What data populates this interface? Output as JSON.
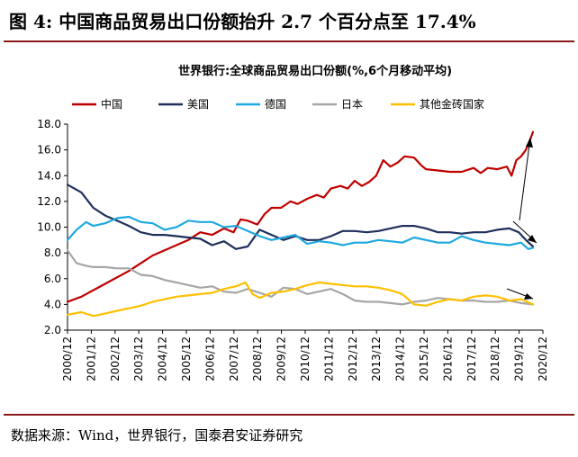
{
  "figure": {
    "title": "图 4: 中国商品贸易出口份额抬升 2.7 个百分点至 17.4%",
    "source": "数据来源：Wind，世界银行，国泰君安证券研究"
  },
  "chart_data": {
    "type": "line",
    "title": "世界银行:全球商品贸易出口份额(%,6个月移动平均)",
    "xlabel": "",
    "ylabel": "",
    "ylim": [
      2.0,
      18.0
    ],
    "yticks": [
      "2.0",
      "4.0",
      "6.0",
      "8.0",
      "10.0",
      "12.0",
      "14.0",
      "16.0",
      "18.0"
    ],
    "x_tick_labels": [
      "2000/12",
      "2001/12",
      "2002/12",
      "2003/12",
      "2004/12",
      "2005/12",
      "2006/12",
      "2007/12",
      "2008/12",
      "2009/12",
      "2010/12",
      "2011/12",
      "2012/12",
      "2013/12",
      "2014/12",
      "2015/12",
      "2016/12",
      "2017/12",
      "2018/12",
      "2019/12",
      "2020/12"
    ],
    "x_range": [
      2000.917,
      2020.917
    ],
    "grid": false,
    "legend_position": "top",
    "series": [
      {
        "name": "中国",
        "color": "#c00000",
        "x": [
          2000.917,
          2001.5,
          2002.0,
          2002.5,
          2003.0,
          2003.5,
          2004.0,
          2004.5,
          2005.0,
          2005.5,
          2006.0,
          2006.5,
          2007.0,
          2007.5,
          2007.9,
          2008.2,
          2008.5,
          2008.9,
          2009.2,
          2009.5,
          2009.9,
          2010.3,
          2010.6,
          2011.0,
          2011.4,
          2011.7,
          2012.0,
          2012.4,
          2012.7,
          2013.0,
          2013.3,
          2013.6,
          2013.9,
          2014.2,
          2014.5,
          2014.8,
          2015.1,
          2015.5,
          2015.8,
          2016.0,
          2016.5,
          2017.0,
          2017.5,
          2018.0,
          2018.3,
          2018.6,
          2019.0,
          2019.4,
          2019.6,
          2019.8,
          2020.0,
          2020.2,
          2020.4,
          2020.5
        ],
        "values": [
          4.2,
          4.6,
          5.1,
          5.6,
          6.1,
          6.6,
          7.2,
          7.8,
          8.2,
          8.6,
          9.0,
          9.6,
          9.4,
          9.9,
          9.6,
          10.6,
          10.5,
          10.2,
          11.0,
          11.5,
          11.5,
          12.0,
          11.8,
          12.2,
          12.5,
          12.3,
          13.0,
          13.2,
          13.0,
          13.6,
          13.2,
          13.5,
          14.0,
          15.2,
          14.7,
          15.0,
          15.5,
          15.4,
          14.8,
          14.5,
          14.4,
          14.3,
          14.3,
          14.6,
          14.2,
          14.6,
          14.5,
          14.7,
          14.0,
          15.2,
          15.5,
          16.0,
          16.9,
          17.4
        ]
      },
      {
        "name": "美国",
        "color": "#1f2f5c",
        "x": [
          2000.917,
          2001.5,
          2002.0,
          2002.5,
          2003.0,
          2003.5,
          2004.0,
          2004.5,
          2005.0,
          2005.5,
          2006.0,
          2006.5,
          2007.0,
          2007.5,
          2008.0,
          2008.5,
          2009.0,
          2009.5,
          2010.0,
          2010.5,
          2011.0,
          2011.5,
          2012.0,
          2012.5,
          2013.0,
          2013.5,
          2014.0,
          2014.5,
          2015.0,
          2015.5,
          2016.0,
          2016.5,
          2017.0,
          2017.5,
          2018.0,
          2018.5,
          2019.0,
          2019.5,
          2019.9,
          2020.2,
          2020.5
        ],
        "values": [
          13.3,
          12.7,
          11.5,
          10.9,
          10.5,
          10.1,
          9.6,
          9.4,
          9.4,
          9.3,
          9.2,
          9.1,
          8.6,
          8.9,
          8.3,
          8.5,
          9.8,
          9.4,
          9.0,
          9.3,
          9.0,
          9.0,
          9.3,
          9.7,
          9.7,
          9.6,
          9.7,
          9.9,
          10.1,
          10.1,
          9.9,
          9.6,
          9.6,
          9.5,
          9.6,
          9.6,
          9.8,
          9.9,
          9.6,
          9.0,
          8.5
        ]
      },
      {
        "name": "德国",
        "color": "#1fa8e0",
        "x": [
          2000.917,
          2001.3,
          2001.7,
          2002.0,
          2002.5,
          2003.0,
          2003.5,
          2004.0,
          2004.5,
          2005.0,
          2005.5,
          2006.0,
          2006.5,
          2007.0,
          2007.5,
          2008.0,
          2008.5,
          2009.0,
          2009.5,
          2010.0,
          2010.5,
          2011.0,
          2011.5,
          2012.0,
          2012.5,
          2013.0,
          2013.5,
          2014.0,
          2014.5,
          2015.0,
          2015.5,
          2016.0,
          2016.5,
          2017.0,
          2017.5,
          2018.0,
          2018.5,
          2019.0,
          2019.5,
          2020.0,
          2020.3,
          2020.5
        ],
        "values": [
          9.0,
          9.8,
          10.4,
          10.1,
          10.3,
          10.7,
          10.8,
          10.4,
          10.3,
          9.8,
          10.0,
          10.5,
          10.4,
          10.4,
          10.0,
          10.1,
          9.7,
          9.3,
          9.0,
          9.2,
          9.4,
          8.7,
          8.9,
          8.8,
          8.6,
          8.8,
          8.8,
          9.0,
          8.9,
          8.8,
          9.2,
          9.0,
          8.8,
          8.8,
          9.3,
          9.0,
          8.8,
          8.7,
          8.6,
          8.8,
          8.3,
          8.4
        ]
      },
      {
        "name": "日本",
        "color": "#a6a6a6",
        "x": [
          2000.917,
          2001.3,
          2001.7,
          2002.0,
          2002.5,
          2003.0,
          2003.5,
          2004.0,
          2004.5,
          2005.0,
          2005.5,
          2006.0,
          2006.5,
          2007.0,
          2007.5,
          2008.0,
          2008.5,
          2009.0,
          2009.5,
          2010.0,
          2010.5,
          2011.0,
          2011.5,
          2012.0,
          2012.5,
          2013.0,
          2013.5,
          2014.0,
          2014.5,
          2015.0,
          2015.5,
          2016.0,
          2016.5,
          2017.0,
          2017.5,
          2018.0,
          2018.5,
          2019.0,
          2019.5,
          2020.0,
          2020.5
        ],
        "values": [
          8.2,
          7.2,
          7.0,
          6.9,
          6.9,
          6.8,
          6.8,
          6.3,
          6.2,
          5.9,
          5.7,
          5.5,
          5.3,
          5.4,
          5.0,
          4.9,
          5.2,
          4.9,
          4.6,
          5.3,
          5.2,
          4.8,
          5.0,
          5.2,
          4.8,
          4.3,
          4.2,
          4.2,
          4.1,
          4.0,
          4.2,
          4.3,
          4.5,
          4.4,
          4.3,
          4.3,
          4.2,
          4.2,
          4.3,
          4.1,
          4.0
        ]
      },
      {
        "name": "其他金砖国家",
        "color": "#ffc000",
        "x": [
          2000.917,
          2001.5,
          2002.0,
          2002.5,
          2003.0,
          2003.5,
          2004.0,
          2004.5,
          2005.0,
          2005.5,
          2006.0,
          2006.5,
          2007.0,
          2007.5,
          2008.0,
          2008.4,
          2008.7,
          2009.0,
          2009.5,
          2010.0,
          2010.5,
          2011.0,
          2011.5,
          2012.0,
          2012.5,
          2013.0,
          2013.5,
          2014.0,
          2014.5,
          2015.0,
          2015.5,
          2016.0,
          2016.5,
          2017.0,
          2017.5,
          2018.0,
          2018.5,
          2019.0,
          2019.5,
          2020.0,
          2020.5
        ],
        "values": [
          3.2,
          3.4,
          3.1,
          3.3,
          3.5,
          3.7,
          3.9,
          4.2,
          4.4,
          4.6,
          4.7,
          4.8,
          4.9,
          5.2,
          5.4,
          5.7,
          4.8,
          4.5,
          4.9,
          5.0,
          5.2,
          5.5,
          5.7,
          5.6,
          5.5,
          5.4,
          5.4,
          5.3,
          5.1,
          4.8,
          4.0,
          3.9,
          4.2,
          4.4,
          4.3,
          4.6,
          4.7,
          4.6,
          4.3,
          4.4,
          4.0
        ]
      }
    ]
  }
}
